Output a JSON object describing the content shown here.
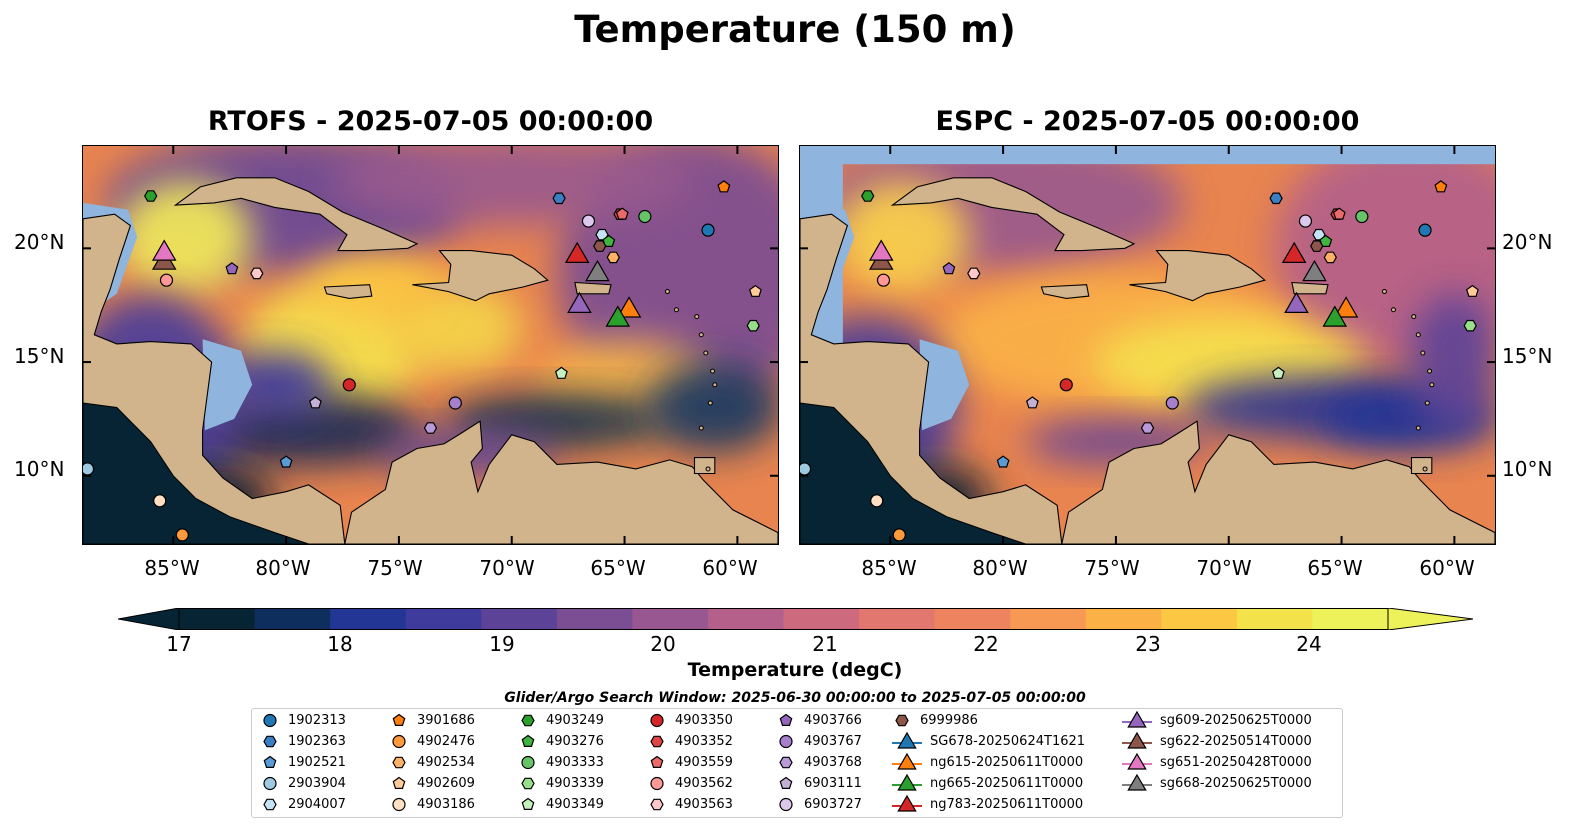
{
  "title": "Temperature (150 m)",
  "panels": [
    {
      "title": "RTOFS - 2025-07-05 00:00:00"
    },
    {
      "title": "ESPC - 2025-07-05 00:00:00"
    }
  ],
  "lat_ticks": [
    "20°N",
    "15°N",
    "10°N"
  ],
  "lon_ticks": [
    "85°W",
    "80°W",
    "75°W",
    "70°W",
    "65°W",
    "60°W"
  ],
  "colorbar": {
    "label": "Temperature (degC)",
    "ticks": [
      "17",
      "18",
      "19",
      "20",
      "21",
      "22",
      "23",
      "24"
    ],
    "colors": [
      "#072434",
      "#0e2f5e",
      "#233595",
      "#3f3b9c",
      "#5d4397",
      "#7b4d93",
      "#985790",
      "#b4608a",
      "#cd6a7d",
      "#e2776f",
      "#ee8360",
      "#f79952",
      "#fbb146",
      "#fcc843",
      "#f3e24a",
      "#eef25a"
    ]
  },
  "search_window": "Glider/Argo Search Window: 2025-06-30 00:00:00 to 2025-07-05 00:00:00",
  "legend": [
    {
      "label": "1902313",
      "marker": "circle",
      "color": "#1f77b4"
    },
    {
      "label": "1902363",
      "marker": "hexagon",
      "color": "#3a7fc4"
    },
    {
      "label": "1902521",
      "marker": "pentagon",
      "color": "#5b9bd5"
    },
    {
      "label": "2903904",
      "marker": "circle",
      "color": "#9ecae1"
    },
    {
      "label": "2904007",
      "marker": "hexagon",
      "color": "#c6e3f5"
    },
    {
      "label": "3901686",
      "marker": "pentagon",
      "color": "#ff7f0e"
    },
    {
      "label": "4902476",
      "marker": "circle",
      "color": "#ff9a3c"
    },
    {
      "label": "4902534",
      "marker": "hexagon",
      "color": "#ffb266"
    },
    {
      "label": "4902609",
      "marker": "pentagon",
      "color": "#ffcc99"
    },
    {
      "label": "4903186",
      "marker": "circle",
      "color": "#ffe0c2"
    },
    {
      "label": "4903249",
      "marker": "hexagon",
      "color": "#2ca02c"
    },
    {
      "label": "4903276",
      "marker": "pentagon",
      "color": "#3fb43f"
    },
    {
      "label": "4903333",
      "marker": "circle",
      "color": "#66c466"
    },
    {
      "label": "4903339",
      "marker": "hexagon",
      "color": "#98df8a"
    },
    {
      "label": "4903349",
      "marker": "pentagon",
      "color": "#c7f0c0"
    },
    {
      "label": "4903350",
      "marker": "circle",
      "color": "#d62728"
    },
    {
      "label": "4903352",
      "marker": "hexagon",
      "color": "#e04545"
    },
    {
      "label": "4903559",
      "marker": "pentagon",
      "color": "#ea6a6a"
    },
    {
      "label": "4903562",
      "marker": "circle",
      "color": "#ff9896"
    },
    {
      "label": "4903563",
      "marker": "hexagon",
      "color": "#ffc8c8"
    },
    {
      "label": "4903766",
      "marker": "pentagon",
      "color": "#9467bd"
    },
    {
      "label": "4903767",
      "marker": "circle",
      "color": "#a680cc"
    },
    {
      "label": "4903768",
      "marker": "hexagon",
      "color": "#b99ad8"
    },
    {
      "label": "6903111",
      "marker": "pentagon",
      "color": "#c5b0d5"
    },
    {
      "label": "6903727",
      "marker": "circle",
      "color": "#dcc8ec"
    },
    {
      "label": "6999986",
      "marker": "hexagon",
      "color": "#8c564b"
    },
    {
      "label": "SG678-20250624T1621",
      "marker": "triangle",
      "color": "#1f77b4"
    },
    {
      "label": "ng615-20250611T0000",
      "marker": "triangle",
      "color": "#ff7f0e"
    },
    {
      "label": "ng665-20250611T0000",
      "marker": "triangle",
      "color": "#2ca02c"
    },
    {
      "label": "ng783-20250611T0000",
      "marker": "triangle",
      "color": "#d62728"
    },
    {
      "label": "sg609-20250625T0000",
      "marker": "triangle",
      "color": "#9467bd"
    },
    {
      "label": "sg622-20250514T0000",
      "marker": "triangle",
      "color": "#8c564b"
    },
    {
      "label": "sg651-20250428T0000",
      "marker": "triangle",
      "color": "#e377c2"
    },
    {
      "label": "sg668-20250625T0000",
      "marker": "triangle",
      "color": "#7f7f7f"
    }
  ],
  "markers": [
    {
      "label": "1902313",
      "lon": -61.3,
      "lat": 20.8
    },
    {
      "label": "1902363",
      "lon": -67.9,
      "lat": 22.2
    },
    {
      "label": "1902521",
      "lon": -80.0,
      "lat": 10.6
    },
    {
      "label": "2903904",
      "lon": -88.8,
      "lat": 10.3
    },
    {
      "label": "2904007",
      "lon": -66.0,
      "lat": 20.6
    },
    {
      "label": "3901686",
      "lon": -60.6,
      "lat": 22.7
    },
    {
      "label": "4902476",
      "lon": -84.6,
      "lat": 7.4
    },
    {
      "label": "4902534",
      "lon": -65.5,
      "lat": 19.6
    },
    {
      "label": "4902609",
      "lon": -59.2,
      "lat": 18.1
    },
    {
      "label": "4903186",
      "lon": -85.6,
      "lat": 8.9
    },
    {
      "label": "4903249",
      "lon": -86.0,
      "lat": 22.3
    },
    {
      "label": "4903276",
      "lon": -65.7,
      "lat": 20.3
    },
    {
      "label": "4903333",
      "lon": -64.1,
      "lat": 21.4
    },
    {
      "label": "4903339",
      "lon": -59.3,
      "lat": 16.6
    },
    {
      "label": "4903349",
      "lon": -67.8,
      "lat": 14.5
    },
    {
      "label": "4903350",
      "lon": -77.2,
      "lat": 14.0
    },
    {
      "label": "4903352",
      "lon": -65.2,
      "lat": 21.5
    },
    {
      "label": "4903559",
      "lon": -65.1,
      "lat": 21.5
    },
    {
      "label": "4903562",
      "lon": -85.3,
      "lat": 18.6
    },
    {
      "label": "4903563",
      "lon": -81.3,
      "lat": 18.9
    },
    {
      "label": "4903766",
      "lon": -82.4,
      "lat": 19.1
    },
    {
      "label": "4903767",
      "lon": -72.5,
      "lat": 13.2
    },
    {
      "label": "4903768",
      "lon": -73.6,
      "lat": 12.1
    },
    {
      "label": "6903111",
      "lon": -78.7,
      "lat": 13.2
    },
    {
      "label": "6903727",
      "lon": -66.6,
      "lat": 21.2
    },
    {
      "label": "6999986",
      "lon": -66.1,
      "lat": 20.1
    },
    {
      "label": "ng615-20250611T0000",
      "lon": -64.8,
      "lat": 17.4
    },
    {
      "label": "ng665-20250611T0000",
      "lon": -65.3,
      "lat": 17.0
    },
    {
      "label": "ng783-20250611T0000",
      "lon": -67.1,
      "lat": 19.8
    },
    {
      "label": "sg609-20250625T0000",
      "lon": -67.0,
      "lat": 17.6
    },
    {
      "label": "sg622-20250514T0000",
      "lon": -85.4,
      "lat": 19.5
    },
    {
      "label": "sg651-20250428T0000",
      "lon": -85.4,
      "lat": 19.9
    },
    {
      "label": "sg668-20250625T0000",
      "lon": -66.2,
      "lat": 19.0
    }
  ]
}
